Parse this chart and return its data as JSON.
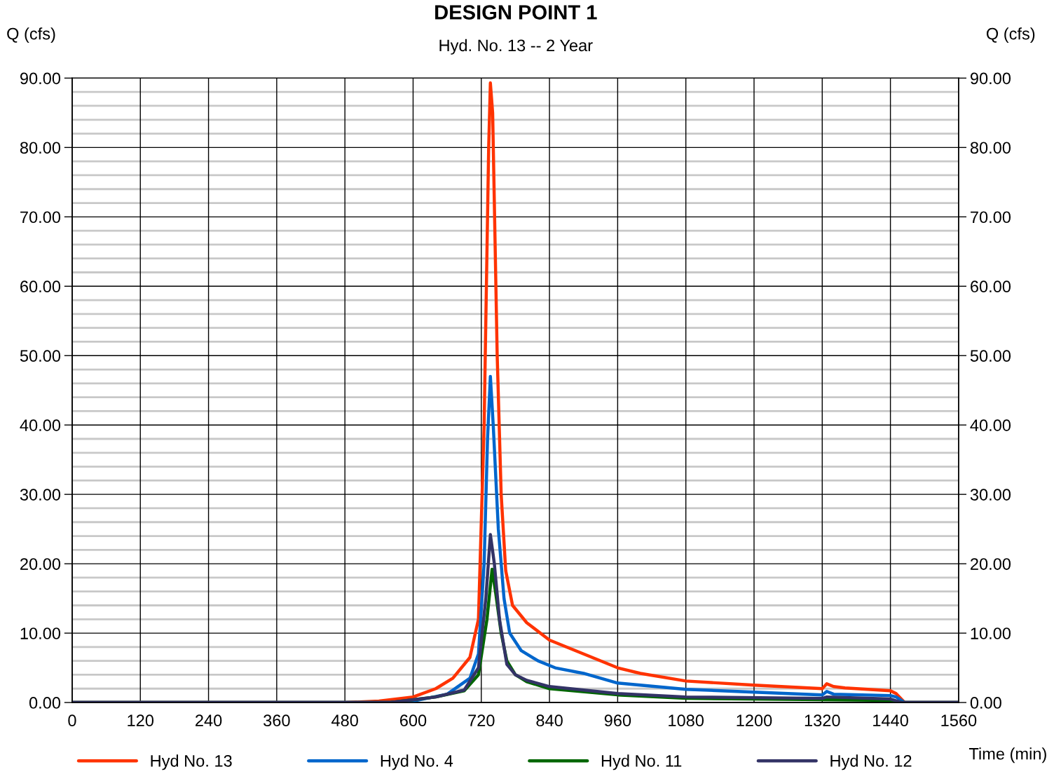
{
  "chart_data": {
    "type": "line",
    "title": "DESIGN POINT 1",
    "subtitle": "Hyd. No. 13 -- 2 Year",
    "ylabel": "Q (cfs)",
    "y2label": "Q (cfs)",
    "xlabel": "Time (min)",
    "xlim": [
      0,
      1560
    ],
    "xticks": [
      0,
      120,
      240,
      360,
      480,
      600,
      720,
      840,
      960,
      1080,
      1200,
      1320,
      1440,
      1560
    ],
    "ylim": [
      0,
      90
    ],
    "yticks": [
      {
        "value": 0,
        "label": "0.00"
      },
      {
        "value": 10,
        "label": "10.00"
      },
      {
        "value": 20,
        "label": "20.00"
      },
      {
        "value": 30,
        "label": "30.00"
      },
      {
        "value": 40,
        "label": "40.00"
      },
      {
        "value": 50,
        "label": "50.00"
      },
      {
        "value": 60,
        "label": "60.00"
      },
      {
        "value": 70,
        "label": "70.00"
      },
      {
        "value": 80,
        "label": "80.00"
      },
      {
        "value": 90,
        "label": "90.00"
      }
    ],
    "y2lim": [
      0,
      90
    ],
    "y2ticks": [
      {
        "value": 0,
        "label": "0.00"
      },
      {
        "value": 10,
        "label": "10.00"
      },
      {
        "value": 20,
        "label": "20.00"
      },
      {
        "value": 30,
        "label": "30.00"
      },
      {
        "value": 40,
        "label": "40.00"
      },
      {
        "value": 50,
        "label": "50.00"
      },
      {
        "value": 60,
        "label": "60.00"
      },
      {
        "value": 70,
        "label": "70.00"
      },
      {
        "value": 80,
        "label": "80.00"
      },
      {
        "value": 90,
        "label": "90.00"
      }
    ],
    "grid": true,
    "legend": "bottom",
    "marker": "none",
    "line_style": "solid",
    "series": [
      {
        "name": "Hyd No. 13",
        "color": "#ff3300",
        "x": [
          0,
          480,
          540,
          600,
          640,
          670,
          700,
          715,
          725,
          733,
          736,
          740,
          748,
          755,
          763,
          775,
          800,
          840,
          900,
          960,
          1000,
          1080,
          1200,
          1320,
          1328,
          1340,
          1360,
          1440,
          1450,
          1465,
          1560
        ],
        "values": [
          0,
          0,
          0.2,
          0.8,
          2,
          3.5,
          6.5,
          12,
          40,
          80,
          89.3,
          85,
          50,
          30,
          19,
          14,
          11.5,
          9,
          7,
          5,
          4.2,
          3.1,
          2.5,
          2.0,
          2.7,
          2.3,
          2.1,
          1.7,
          1.3,
          0,
          0
        ]
      },
      {
        "name": "Hyd No. 4",
        "color": "#0066cc",
        "x": [
          0,
          560,
          600,
          660,
          700,
          715,
          725,
          731,
          736,
          741,
          750,
          760,
          770,
          790,
          820,
          850,
          900,
          960,
          1080,
          1200,
          1320,
          1328,
          1340,
          1440,
          1450,
          1465,
          1560
        ],
        "values": [
          0,
          0,
          0.2,
          1.2,
          3.5,
          7,
          20,
          38,
          47,
          40,
          25,
          15,
          10,
          7.5,
          6,
          5,
          4.2,
          2.8,
          1.9,
          1.5,
          1.1,
          1.6,
          1.2,
          1.0,
          0.8,
          0,
          0
        ]
      },
      {
        "name": "Hyd No. 11",
        "color": "#006600",
        "x": [
          0,
          560,
          640,
          690,
          715,
          730,
          739,
          745,
          755,
          765,
          780,
          800,
          840,
          960,
          1080,
          1320,
          1440,
          1460,
          1560
        ],
        "values": [
          0,
          0,
          0.8,
          1.7,
          4,
          12,
          19.2,
          16,
          10,
          6,
          4,
          3,
          2,
          1.1,
          0.6,
          0.4,
          0.3,
          0,
          0
        ]
      },
      {
        "name": "Hyd No. 12",
        "color": "#333366",
        "x": [
          0,
          560,
          640,
          690,
          715,
          728,
          736,
          743,
          752,
          765,
          780,
          800,
          840,
          960,
          1080,
          1320,
          1328,
          1440,
          1460,
          1560
        ],
        "values": [
          0,
          0,
          0.8,
          1.8,
          5,
          15,
          24.2,
          20,
          12,
          5.5,
          4,
          3.2,
          2.3,
          1.3,
          0.8,
          0.6,
          0.8,
          0.5,
          0,
          0
        ]
      }
    ]
  }
}
